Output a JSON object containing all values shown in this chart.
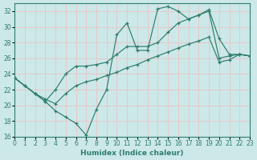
{
  "xlabel": "Humidex (Indice chaleur)",
  "bg_color": "#cce8e8",
  "grid_color": "#e8c8c8",
  "line_color": "#2e7d6e",
  "xlim": [
    0,
    23
  ],
  "ylim": [
    16,
    33
  ],
  "xticks": [
    0,
    1,
    2,
    3,
    4,
    5,
    6,
    7,
    8,
    9,
    10,
    11,
    12,
    13,
    14,
    15,
    16,
    17,
    18,
    19,
    20,
    21,
    22,
    23
  ],
  "yticks": [
    16,
    18,
    20,
    22,
    24,
    26,
    28,
    30,
    32
  ],
  "line1_x": [
    0,
    1,
    2,
    3,
    4,
    5,
    6,
    7,
    8,
    9,
    10,
    11,
    12,
    13,
    14,
    15,
    16,
    17,
    18,
    19,
    20,
    21,
    22,
    23
  ],
  "line1_y": [
    23.5,
    22.5,
    21.5,
    20.5,
    19.3,
    18.5,
    17.7,
    16.2,
    19.5,
    22.0,
    29.0,
    30.5,
    27.0,
    27.0,
    32.3,
    32.6,
    32.0,
    31.0,
    31.5,
    32.2,
    28.5,
    26.5,
    26.5,
    26.3
  ],
  "line2_x": [
    0,
    2,
    3,
    4,
    5,
    6,
    7,
    8,
    9,
    10,
    11,
    12,
    13,
    14,
    15,
    16,
    17,
    18,
    19,
    20,
    21,
    22,
    23
  ],
  "line2_y": [
    23.5,
    21.5,
    20.5,
    22.0,
    24.0,
    25.0,
    25.0,
    25.2,
    25.5,
    26.5,
    27.5,
    27.5,
    27.5,
    28.0,
    29.3,
    30.5,
    31.0,
    31.5,
    32.0,
    26.0,
    26.3,
    26.5,
    26.3
  ],
  "line3_x": [
    0,
    1,
    2,
    3,
    4,
    5,
    6,
    7,
    8,
    9,
    10,
    11,
    12,
    13,
    14,
    15,
    16,
    17,
    18,
    19,
    20,
    21,
    22,
    23
  ],
  "line3_y": [
    23.5,
    22.5,
    21.5,
    20.8,
    20.2,
    21.5,
    22.5,
    23.0,
    23.3,
    23.8,
    24.2,
    24.8,
    25.2,
    25.8,
    26.3,
    26.8,
    27.3,
    27.8,
    28.2,
    28.7,
    25.5,
    25.8,
    26.5,
    26.3
  ]
}
